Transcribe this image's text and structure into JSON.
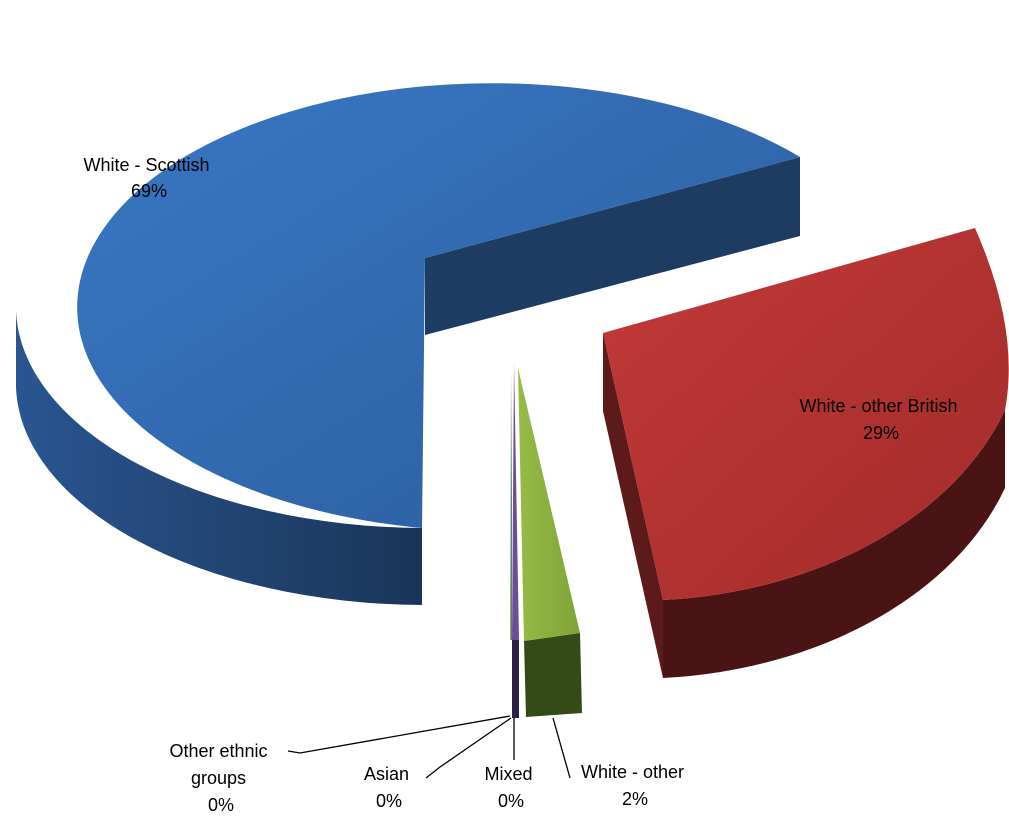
{
  "chart_data": {
    "type": "pie",
    "title": "",
    "style": "3d-exploded",
    "slices": [
      {
        "name": "White - Scottish",
        "value": 69,
        "label_value": "69%",
        "color": "#2E64A8",
        "side_color": "#1F3C63",
        "label_lines": [
          "White - Scottish",
          "69%"
        ]
      },
      {
        "name": "White - other British",
        "value": 29,
        "label_value": "29%",
        "color": "#B0302F",
        "side_color": "#4A1414",
        "label_lines": [
          "White - other British",
          "29%"
        ]
      },
      {
        "name": "White - other",
        "value": 2,
        "label_value": "2%",
        "color": "#8AAF3E",
        "side_color": "#344A17",
        "label_lines": [
          "White - other",
          "2%"
        ]
      },
      {
        "name": "Mixed",
        "value": 0,
        "label_value": "0%",
        "color": "#6B4E9B",
        "side_color": "#2D1F45",
        "label_lines": [
          "Mixed",
          "0%"
        ]
      },
      {
        "name": "Asian",
        "value": 0,
        "label_value": "0%",
        "color": "#2E8FA5",
        "side_color": "#143C47",
        "label_lines": [
          "Asian",
          "0%"
        ]
      },
      {
        "name": "Other ethnic groups",
        "value": 0,
        "label_value": "0%",
        "color": "#D58A30",
        "side_color": "#5A3810",
        "label_lines": [
          "Other ethnic",
          "groups",
          "0%"
        ]
      }
    ]
  }
}
